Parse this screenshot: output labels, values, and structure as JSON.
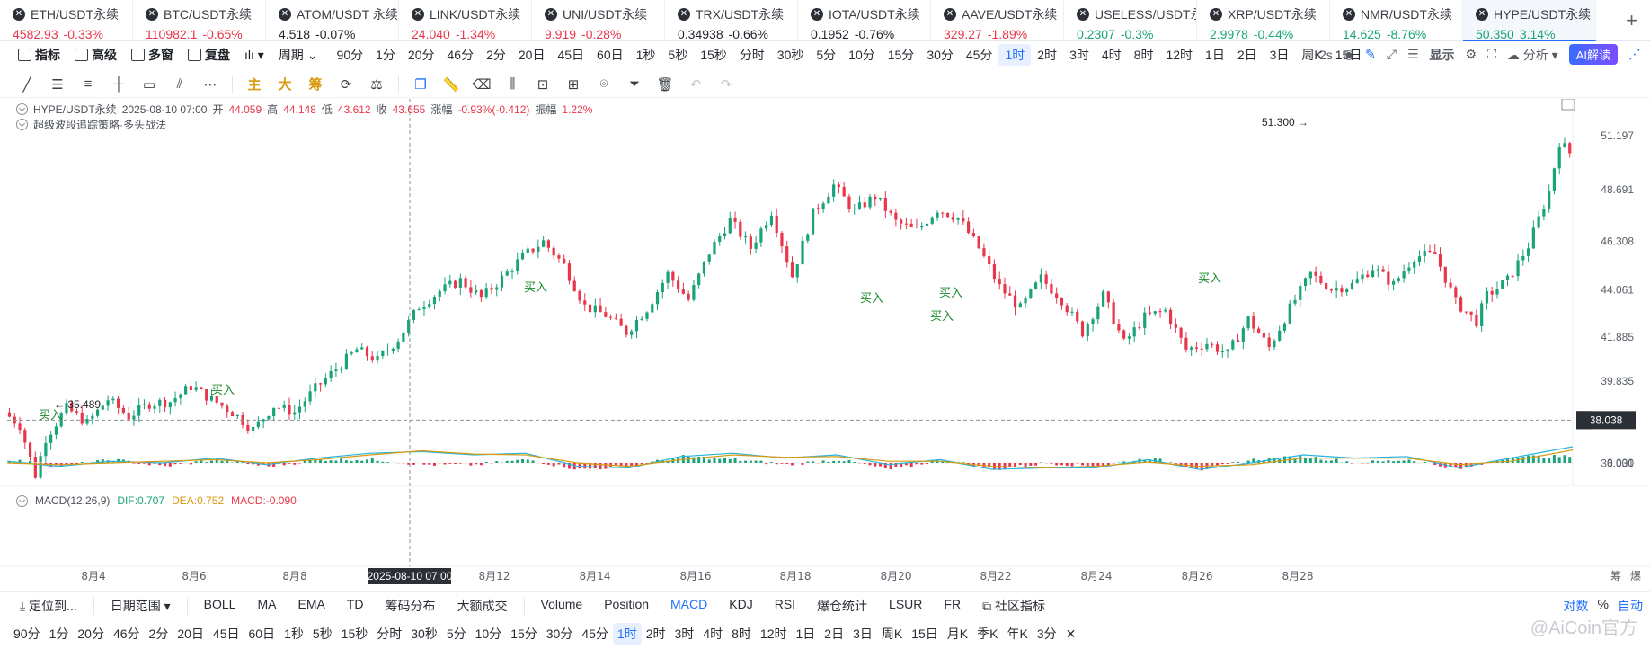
{
  "tickers": [
    {
      "name": "ETH/USDT永续",
      "price": "4582.93",
      "change": "-0.33%",
      "color": "red"
    },
    {
      "name": "BTC/USDT永续",
      "price": "110982.1",
      "change": "-0.65%",
      "color": "red"
    },
    {
      "name": "ATOM/USDT 永续",
      "price": "4.518",
      "change": "-0.07%",
      "color": "dark"
    },
    {
      "name": "LINK/USDT永续",
      "price": "24.040",
      "change": "-1.34%",
      "color": "red"
    },
    {
      "name": "UNI/USDT永续",
      "price": "9.919",
      "change": "-0.28%",
      "color": "red"
    },
    {
      "name": "TRX/USDT永续",
      "price": "0.34938",
      "change": "-0.66%",
      "color": "dark"
    },
    {
      "name": "IOTA/USDT永续",
      "price": "0.1952",
      "change": "-0.76%",
      "color": "dark"
    },
    {
      "name": "AAVE/USDT永续",
      "price": "329.27",
      "change": "-1.89%",
      "color": "red"
    },
    {
      "name": "USELESS/USDT永续",
      "price": "0.2307",
      "change": "-0.3%",
      "color": "green"
    },
    {
      "name": "XRP/USDT永续",
      "price": "2.9978",
      "change": "-0.44%",
      "color": "green"
    },
    {
      "name": "NMR/USDT永续",
      "price": "14.625",
      "change": "-8.76%",
      "color": "green"
    },
    {
      "name": "HYPE/USDT永续",
      "price": "50.350",
      "change": "3.14%",
      "color": "green",
      "active": true
    }
  ],
  "toolbar": {
    "indicator": "指标",
    "advanced": "高级",
    "multi_window": "多窗",
    "replay": "复盘",
    "period_label": "周期",
    "timeframes": [
      "90分",
      "1分",
      "20分",
      "46分",
      "2分",
      "20日",
      "45日",
      "60日",
      "1秒",
      "5秒",
      "15秒",
      "分时",
      "30秒",
      "5分",
      "10分",
      "15分",
      "30分",
      "45分",
      "1时",
      "2时",
      "3时",
      "4时",
      "8时",
      "12时",
      "1日",
      "2日",
      "3日",
      "周K",
      "15日"
    ],
    "selected_timeframe": "1时",
    "refresh": "2s",
    "display": "显示",
    "analysis": "分析",
    "ai": "AI解读"
  },
  "drawing_tools": {
    "main": "主",
    "large": "大",
    "chip": "筹"
  },
  "info": {
    "symbol": "HYPE/USDT永续",
    "datetime": "2025-08-10 07:00",
    "open_label": "开",
    "open": "44.059",
    "high_label": "高",
    "high": "44.148",
    "low_label": "低",
    "low": "43.612",
    "close_label": "收",
    "close": "43.655",
    "chg_label": "涨幅",
    "chg": "-0.93%(-0.412)",
    "amp_label": "振幅",
    "amp": "1.22%"
  },
  "strategy": "超级波段追踪策略·多头战法",
  "macd": {
    "label": "MACD(12,26,9)",
    "dif": "DIF:0.707",
    "dea": "DEA:0.752",
    "macd": "MACD:-0.090"
  },
  "chart_data": {
    "type": "candlestick",
    "symbol": "HYPE/USDT永续",
    "interval": "1时",
    "y_ticks": [
      "51.197",
      "48.691",
      "46.308",
      "44.061",
      "41.885",
      "39.835",
      "36.031"
    ],
    "y_tick_values": [
      51.197,
      48.691,
      46.308,
      44.061,
      41.885,
      39.835,
      36.031
    ],
    "ylim": [
      34.6,
      52.4
    ],
    "x_ticks": [
      "8月4",
      "8月6",
      "8月8",
      "8月12",
      "8月14",
      "8月16",
      "8月18",
      "8月20",
      "8月22",
      "8月24",
      "8月26",
      "8月28"
    ],
    "crosshair_date": "2025-08-10 07:00",
    "crosshair_price": "38.038",
    "max_label": "51.300",
    "min_label": "35.489",
    "signals": [
      "买入",
      "买入",
      "买入",
      "买入",
      "买入",
      "买入",
      "买入"
    ],
    "macd_zero": "0.000",
    "path_points": [
      [
        0,
        38.4
      ],
      [
        3,
        37.8
      ],
      [
        6,
        35.5
      ],
      [
        8,
        37.2
      ],
      [
        12,
        38.6
      ],
      [
        16,
        37.9
      ],
      [
        20,
        39.0
      ],
      [
        24,
        38.2
      ],
      [
        28,
        38.8
      ],
      [
        32,
        38.9
      ],
      [
        36,
        39.6
      ],
      [
        40,
        39.0
      ],
      [
        44,
        38.4
      ],
      [
        48,
        37.6
      ],
      [
        52,
        38.7
      ],
      [
        56,
        38.4
      ],
      [
        60,
        39.5
      ],
      [
        64,
        40.4
      ],
      [
        68,
        41.3
      ],
      [
        72,
        40.8
      ],
      [
        76,
        41.8
      ],
      [
        80,
        43.3
      ],
      [
        84,
        44.0
      ],
      [
        88,
        44.5
      ],
      [
        92,
        43.7
      ],
      [
        96,
        44.6
      ],
      [
        100,
        45.6
      ],
      [
        104,
        46.3
      ],
      [
        108,
        45.2
      ],
      [
        112,
        43.3
      ],
      [
        116,
        42.9
      ],
      [
        120,
        42.1
      ],
      [
        124,
        43.2
      ],
      [
        128,
        44.8
      ],
      [
        132,
        43.6
      ],
      [
        136,
        45.8
      ],
      [
        140,
        47.3
      ],
      [
        144,
        46.0
      ],
      [
        148,
        47.7
      ],
      [
        152,
        44.7
      ],
      [
        156,
        47.6
      ],
      [
        160,
        48.9
      ],
      [
        164,
        47.7
      ],
      [
        168,
        48.4
      ],
      [
        172,
        47.2
      ],
      [
        176,
        46.8
      ],
      [
        180,
        47.8
      ],
      [
        184,
        47.4
      ],
      [
        188,
        46.0
      ],
      [
        192,
        44.2
      ],
      [
        196,
        43.2
      ],
      [
        200,
        44.6
      ],
      [
        204,
        43.6
      ],
      [
        208,
        42.1
      ],
      [
        212,
        43.8
      ],
      [
        216,
        41.6
      ],
      [
        220,
        42.8
      ],
      [
        224,
        43.1
      ],
      [
        228,
        41.3
      ],
      [
        232,
        41.6
      ],
      [
        236,
        41.1
      ],
      [
        240,
        42.7
      ],
      [
        244,
        41.4
      ],
      [
        248,
        43.2
      ],
      [
        252,
        44.8
      ],
      [
        256,
        44.1
      ],
      [
        260,
        44.3
      ],
      [
        264,
        45.1
      ],
      [
        268,
        44.3
      ],
      [
        272,
        45.6
      ],
      [
        276,
        45.7
      ],
      [
        280,
        43.5
      ],
      [
        284,
        42.6
      ],
      [
        286,
        43.8
      ],
      [
        290,
        44.5
      ],
      [
        294,
        46.1
      ],
      [
        298,
        48.6
      ],
      [
        300,
        50.9
      ],
      [
        302,
        50.4
      ]
    ],
    "n_candles": 302,
    "macd_dif_points": [
      [
        0,
        0.1
      ],
      [
        10,
        -0.2
      ],
      [
        20,
        0.1
      ],
      [
        30,
        0.0
      ],
      [
        40,
        0.3
      ],
      [
        50,
        -0.1
      ],
      [
        60,
        0.3
      ],
      [
        70,
        0.6
      ],
      [
        80,
        0.7
      ],
      [
        90,
        0.5
      ],
      [
        100,
        0.6
      ],
      [
        110,
        -0.2
      ],
      [
        120,
        -0.3
      ],
      [
        130,
        0.4
      ],
      [
        140,
        0.6
      ],
      [
        150,
        0.3
      ],
      [
        160,
        0.5
      ],
      [
        170,
        -0.1
      ],
      [
        180,
        0.2
      ],
      [
        190,
        -0.4
      ],
      [
        200,
        -0.3
      ],
      [
        210,
        -0.3
      ],
      [
        220,
        0.2
      ],
      [
        230,
        -0.4
      ],
      [
        240,
        0.0
      ],
      [
        250,
        0.5
      ],
      [
        260,
        0.3
      ],
      [
        270,
        0.4
      ],
      [
        280,
        -0.3
      ],
      [
        290,
        0.3
      ],
      [
        302,
        1.0
      ]
    ],
    "macd_dea_points": [
      [
        0,
        0.0
      ],
      [
        10,
        -0.1
      ],
      [
        20,
        0.0
      ],
      [
        30,
        0.1
      ],
      [
        40,
        0.2
      ],
      [
        50,
        0.0
      ],
      [
        60,
        0.2
      ],
      [
        70,
        0.5
      ],
      [
        80,
        0.75
      ],
      [
        90,
        0.55
      ],
      [
        100,
        0.5
      ],
      [
        110,
        0.0
      ],
      [
        120,
        -0.2
      ],
      [
        130,
        0.2
      ],
      [
        140,
        0.5
      ],
      [
        150,
        0.35
      ],
      [
        160,
        0.4
      ],
      [
        170,
        0.1
      ],
      [
        180,
        0.1
      ],
      [
        190,
        -0.2
      ],
      [
        200,
        -0.3
      ],
      [
        210,
        -0.2
      ],
      [
        220,
        0.05
      ],
      [
        230,
        -0.2
      ],
      [
        240,
        -0.1
      ],
      [
        250,
        0.3
      ],
      [
        260,
        0.3
      ],
      [
        270,
        0.3
      ],
      [
        280,
        -0.1
      ],
      [
        290,
        0.1
      ],
      [
        302,
        0.8
      ]
    ]
  },
  "indicator_bar": {
    "locate": "定位到...",
    "date_range": "日期范围",
    "main_indicators": [
      "BOLL",
      "MA",
      "EMA",
      "TD",
      "筹码分布",
      "大额成交"
    ],
    "sub_indicators": [
      "Volume",
      "Position",
      "MACD",
      "KDJ",
      "RSI",
      "爆仓统计",
      "LSUR",
      "FR"
    ],
    "selected_sub": "MACD",
    "community": "社区指标",
    "log": "对数",
    "pct": "%",
    "auto": "自动"
  },
  "bottom_periods": [
    "90分",
    "1分",
    "20分",
    "46分",
    "2分",
    "20日",
    "45日",
    "60日",
    "1秒",
    "5秒",
    "15秒",
    "分时",
    "30秒",
    "5分",
    "10分",
    "15分",
    "30分",
    "45分",
    "1时",
    "2时",
    "3时",
    "4时",
    "8时",
    "12时",
    "1日",
    "2日",
    "3日",
    "周K",
    "15日",
    "月K",
    "季K",
    "年K",
    "3分"
  ],
  "bottom_selected": "1时",
  "right_labels": {
    "chip": "筹",
    "burst": "爆"
  },
  "watermark": "@AiCoin官方"
}
